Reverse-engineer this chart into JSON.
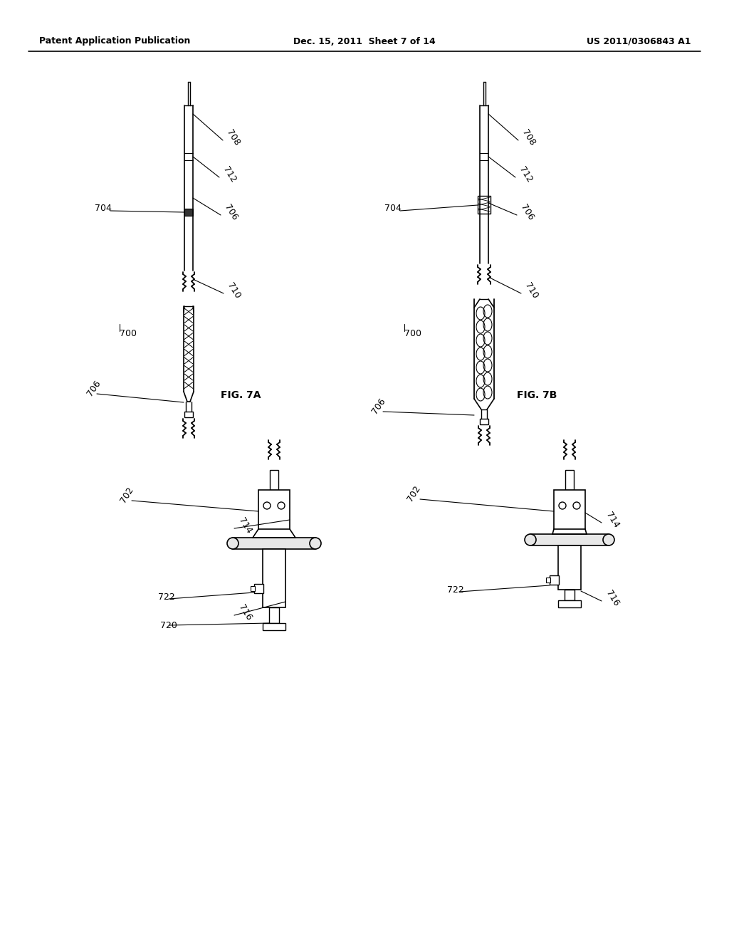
{
  "background_color": "#ffffff",
  "header_left": "Patent Application Publication",
  "header_center": "Dec. 15, 2011  Sheet 7 of 14",
  "header_right": "US 2011/0306843 A1",
  "fig7a_label": "FIG. 7A",
  "fig7b_label": "FIG. 7B"
}
